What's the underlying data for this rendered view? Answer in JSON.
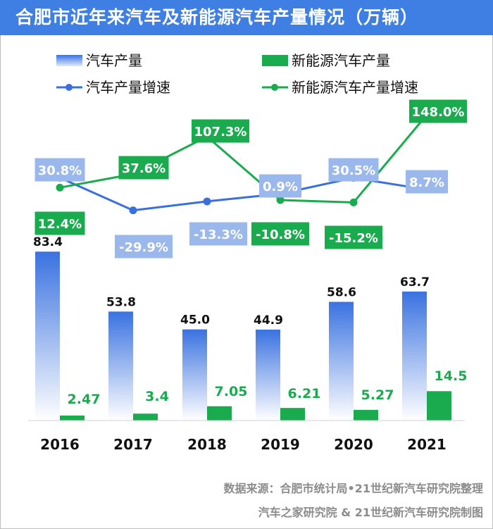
{
  "title": "合肥市近年来汽车及新能源汽车产量情况（万辆）",
  "legend": {
    "car_production": "汽车产量",
    "nev_production": "新能源汽车产量",
    "car_growth": "汽车产量增速",
    "nev_growth": "新能源汽车产量增速"
  },
  "colors": {
    "title_bg": "#3f7fe3",
    "car_bar": "#3f7fe3",
    "nev_bar": "#1aab4f",
    "car_line": "#3a6fe0",
    "nev_line": "#1aab4f",
    "car_label_bg": "#9ab8ec",
    "nev_label_bg": "#1aab4f"
  },
  "chart_data": {
    "type": "bar",
    "categories": [
      "2016",
      "2017",
      "2018",
      "2019",
      "2020",
      "2021"
    ],
    "series": [
      {
        "name": "汽车产量",
        "type": "bar",
        "values": [
          83.4,
          53.8,
          45.0,
          44.9,
          58.6,
          63.7
        ],
        "labels": [
          "83.4",
          "53.8",
          "45.0",
          "44.9",
          "58.6",
          "63.7"
        ]
      },
      {
        "name": "新能源汽车产量",
        "type": "bar",
        "values": [
          2.47,
          3.4,
          7.05,
          6.21,
          5.27,
          14.5
        ],
        "labels": [
          "2.47",
          "3.4",
          "7.05",
          "6.21",
          "5.27",
          "14.5"
        ]
      },
      {
        "name": "汽车产量增速",
        "type": "line",
        "values": [
          30.8,
          -29.9,
          -13.3,
          0.9,
          30.5,
          8.7
        ],
        "labels": [
          "30.8%",
          "-29.9%",
          "-13.3%",
          "0.9%",
          "30.5%",
          "8.7%"
        ]
      },
      {
        "name": "新能源汽车产量增速",
        "type": "line",
        "values": [
          12.4,
          37.6,
          107.3,
          -10.8,
          -15.2,
          148.0
        ],
        "labels": [
          "12.4%",
          "37.6%",
          "107.3%",
          "-10.8%",
          "-15.2%",
          "148.0%"
        ]
      }
    ],
    "title": "合肥市近年来汽车及新能源汽车产量情况（万辆）",
    "xlabel": "",
    "ylabel": "万辆",
    "ylim": [
      0,
      100
    ],
    "grid": false,
    "legend": "top"
  },
  "source": {
    "line1": "数据来源：合肥市统计局•21世纪新汽车研究院整理",
    "line2": "汽车之家研究院 & 21世纪新汽车研究院制图"
  }
}
